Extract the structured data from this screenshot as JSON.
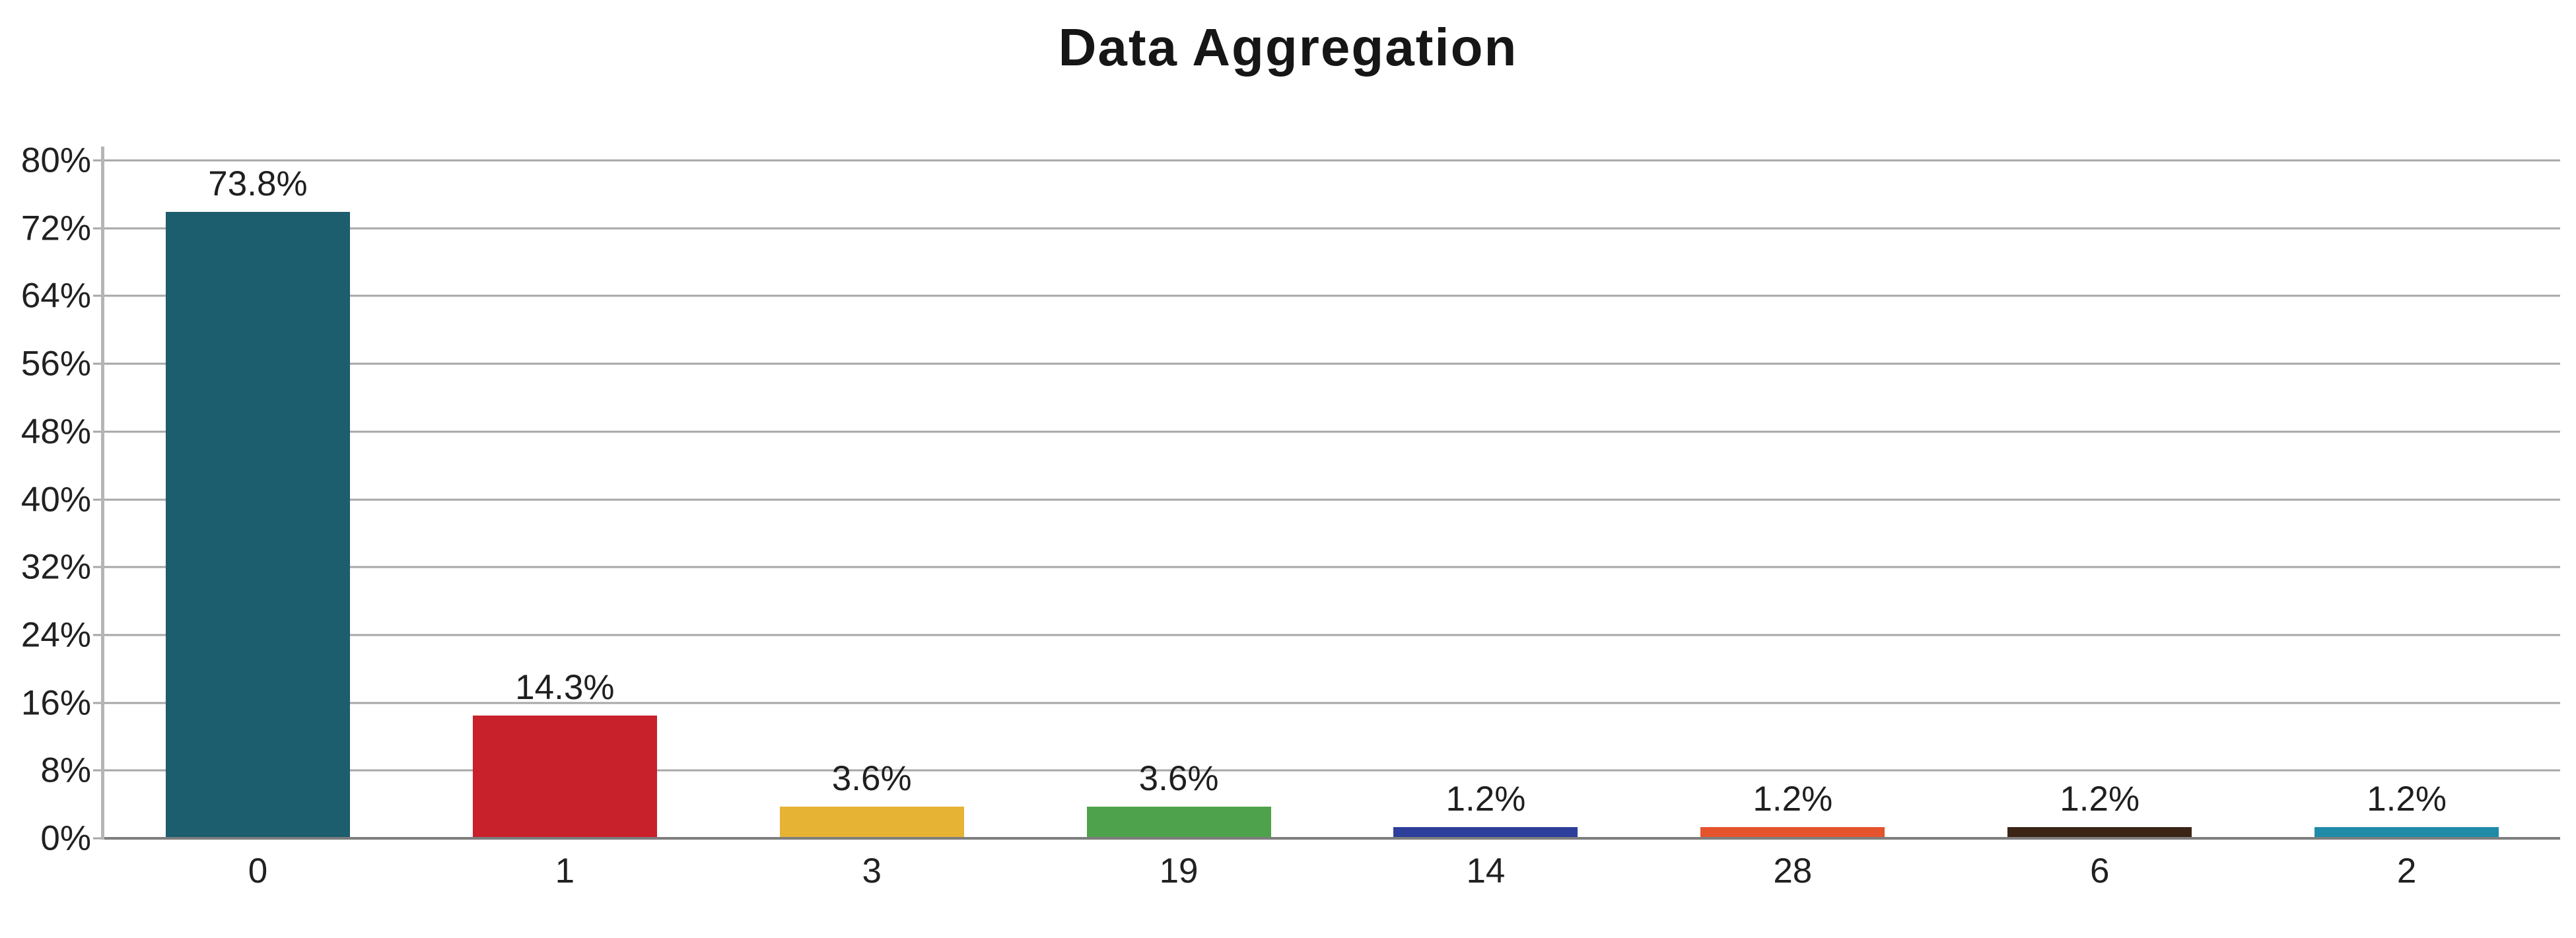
{
  "title": "Data Aggregation",
  "chart_data": {
    "type": "bar",
    "title": "Data Aggregation",
    "categories": [
      "0",
      "1",
      "3",
      "19",
      "14",
      "28",
      "6",
      "2"
    ],
    "values": [
      73.8,
      14.3,
      3.6,
      3.6,
      1.2,
      1.2,
      1.2,
      1.2
    ],
    "value_labels": [
      "73.8%",
      "14.3%",
      "3.6%",
      "3.6%",
      "1.2%",
      "1.2%",
      "1.2%",
      "1.2%"
    ],
    "bar_colors": [
      "#1C5D6E",
      "#C9212C",
      "#E6B335",
      "#4FA24C",
      "#2D3E9B",
      "#E5532D",
      "#3B2416",
      "#1F8BA7"
    ],
    "xlabel": "",
    "ylabel": "",
    "ylim": [
      0,
      80
    ],
    "ytick_step": 8,
    "yticks": [
      "0%",
      "8%",
      "16%",
      "24%",
      "32%",
      "40%",
      "48%",
      "56%",
      "64%",
      "72%",
      "80%"
    ],
    "grid": "horizontal",
    "legend": "none",
    "colors": {
      "background": "#FFFFFF",
      "gridline": "#A7A7A7",
      "baseline_axis": "#7E7E7E",
      "y_axis_line": "#B5B5B5",
      "tick_mark": "#A7A7A7",
      "label_text": "#212121",
      "value_label_text": "#1F1F1F",
      "title_text": "#161616"
    }
  }
}
